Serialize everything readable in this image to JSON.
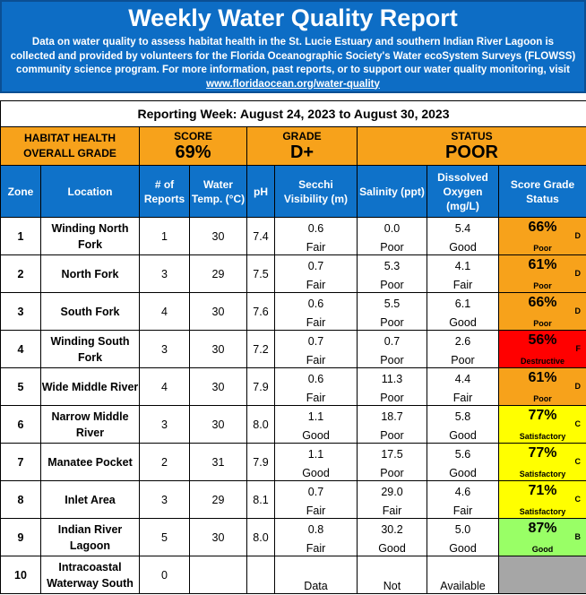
{
  "banner": {
    "title": "Weekly Water Quality Report",
    "description": "Data on water quality to assess habitat health in the St. Lucie Estuary and southern Indian River Lagoon is collected and provided by volunteers for the Florida Oceanographic Society's Water ecoSystem Surveys (FLOWSS) community science program.  For more information, past reports, or to support our water quality monitoring, visit ",
    "link": "www.floridaocean.org/water-quality"
  },
  "reporting_week": "Reporting Week: August 24, 2023 to August 30, 2023",
  "summary": {
    "label_line1": "HABITAT HEALTH",
    "label_line2": "OVERALL GRADE",
    "score_label": "SCORE",
    "score_value": "69%",
    "grade_label": "GRADE",
    "grade_value": "D+",
    "status_label": "STATUS",
    "status_value": "POOR"
  },
  "headers": {
    "zone": "Zone",
    "location": "Location",
    "reports": "# of Reports",
    "temp": "Water Temp. (°C)",
    "ph": "pH",
    "secchi": "Secchi Visibility (m)",
    "salinity": "Salinity (ppt)",
    "oxygen": "Dissolved Oxygen (mg/L)",
    "score": "Score   Grade Status"
  },
  "colors": {
    "poor": "#f7a21b",
    "destructive": "#ff0000",
    "satisfactory": "#ffff00",
    "good": "#99ff66",
    "nodata": "#a6a6a6"
  },
  "rows": [
    {
      "zone": "1",
      "location": "Winding North Fork",
      "reports": "1",
      "temp": "30",
      "ph": "7.4",
      "secchi": "0.6",
      "secchi_q": "Fair",
      "salinity": "0.0",
      "salinity_q": "Poor",
      "oxygen": "5.4",
      "oxygen_q": "Good",
      "score": "66%",
      "grade": "D",
      "status": "Poor",
      "color": "poor"
    },
    {
      "zone": "2",
      "location": "North Fork",
      "reports": "3",
      "temp": "29",
      "ph": "7.5",
      "secchi": "0.7",
      "secchi_q": "Fair",
      "salinity": "5.3",
      "salinity_q": "Poor",
      "oxygen": "4.1",
      "oxygen_q": "Fair",
      "score": "61%",
      "grade": "D",
      "status": "Poor",
      "color": "poor"
    },
    {
      "zone": "3",
      "location": "South Fork",
      "reports": "4",
      "temp": "30",
      "ph": "7.6",
      "secchi": "0.6",
      "secchi_q": "Fair",
      "salinity": "5.5",
      "salinity_q": "Poor",
      "oxygen": "6.1",
      "oxygen_q": "Good",
      "score": "66%",
      "grade": "D",
      "status": "Poor",
      "color": "poor"
    },
    {
      "zone": "4",
      "location": "Winding South Fork",
      "reports": "3",
      "temp": "30",
      "ph": "7.2",
      "secchi": "0.7",
      "secchi_q": "Fair",
      "salinity": "0.7",
      "salinity_q": "Poor",
      "oxygen": "2.6",
      "oxygen_q": "Poor",
      "score": "56%",
      "grade": "F",
      "status": "Destructive",
      "color": "destructive"
    },
    {
      "zone": "5",
      "location": "Wide Middle River",
      "reports": "4",
      "temp": "30",
      "ph": "7.9",
      "secchi": "0.6",
      "secchi_q": "Fair",
      "salinity": "11.3",
      "salinity_q": "Poor",
      "oxygen": "4.4",
      "oxygen_q": "Fair",
      "score": "61%",
      "grade": "D",
      "status": "Poor",
      "color": "poor"
    },
    {
      "zone": "6",
      "location": "Narrow Middle River",
      "reports": "3",
      "temp": "30",
      "ph": "8.0",
      "secchi": "1.1",
      "secchi_q": "Good",
      "salinity": "18.7",
      "salinity_q": "Poor",
      "oxygen": "5.8",
      "oxygen_q": "Good",
      "score": "77%",
      "grade": "C",
      "status": "Satisfactory",
      "color": "satisfactory"
    },
    {
      "zone": "7",
      "location": "Manatee Pocket",
      "reports": "2",
      "temp": "31",
      "ph": "7.9",
      "secchi": "1.1",
      "secchi_q": "Good",
      "salinity": "17.5",
      "salinity_q": "Poor",
      "oxygen": "5.6",
      "oxygen_q": "Good",
      "score": "77%",
      "grade": "C",
      "status": "Satisfactory",
      "color": "satisfactory"
    },
    {
      "zone": "8",
      "location": "Inlet Area",
      "reports": "3",
      "temp": "29",
      "ph": "8.1",
      "secchi": "0.7",
      "secchi_q": "Fair",
      "salinity": "29.0",
      "salinity_q": "Fair",
      "oxygen": "4.6",
      "oxygen_q": "Fair",
      "score": "71%",
      "grade": "C",
      "status": "Satisfactory",
      "color": "satisfactory"
    },
    {
      "zone": "9",
      "location": "Indian River Lagoon",
      "reports": "5",
      "temp": "30",
      "ph": "8.0",
      "secchi": "0.8",
      "secchi_q": "Fair",
      "salinity": "30.2",
      "salinity_q": "Good",
      "oxygen": "5.0",
      "oxygen_q": "Good",
      "score": "87%",
      "grade": "B",
      "status": "Good",
      "color": "good"
    },
    {
      "zone": "10",
      "location": "Intracoastal Waterway South",
      "reports": "0",
      "temp": "",
      "ph": "",
      "secchi": "",
      "secchi_q": "Data",
      "salinity": "",
      "salinity_q": "Not",
      "oxygen": "",
      "oxygen_q": "Available",
      "score": "",
      "grade": "",
      "status": "",
      "color": "nodata"
    }
  ]
}
